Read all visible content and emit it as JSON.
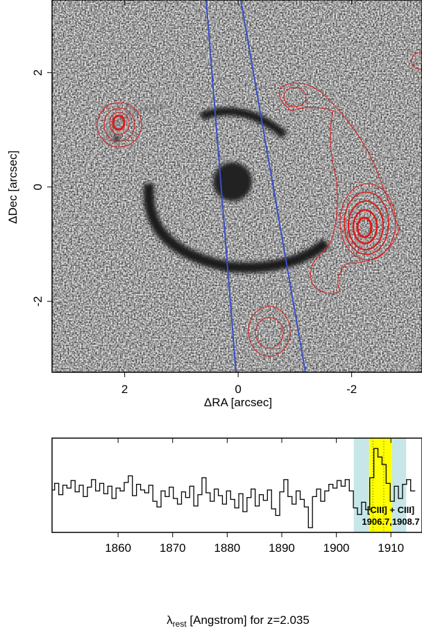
{
  "chart_data": [
    {
      "type": "image",
      "xlabel": "ΔRA [arcsec]",
      "ylabel": "ΔDec [arcsec]",
      "xlim": [
        3.28,
        -3.24
      ],
      "ylim": [
        -3.24,
        3.27
      ],
      "xticks": [
        2,
        0,
        -2
      ],
      "yticks": [
        -2,
        0,
        2
      ]
    },
    {
      "type": "step",
      "xlabel": [
        "λ",
        "rest",
        " [Angstrom] for z=2.035"
      ],
      "xlim": [
        1847.9,
        1915.7
      ],
      "ylim": [
        0,
        1
      ],
      "xticks": [
        1860,
        1870,
        1880,
        1890,
        1900,
        1910
      ],
      "bin_width": 0.75,
      "color": "#000000",
      "x": [
        1848.0,
        1848.75,
        1849.5,
        1850.25,
        1851.0,
        1851.75,
        1852.5,
        1853.25,
        1854.0,
        1854.75,
        1855.5,
        1856.25,
        1857.0,
        1857.75,
        1858.5,
        1859.25,
        1860.0,
        1860.75,
        1861.5,
        1862.25,
        1863.0,
        1863.75,
        1864.5,
        1865.25,
        1866.0,
        1866.75,
        1867.5,
        1868.25,
        1869.0,
        1869.75,
        1870.5,
        1871.25,
        1872.0,
        1872.75,
        1873.5,
        1874.25,
        1875.0,
        1875.75,
        1876.5,
        1877.25,
        1878.0,
        1878.75,
        1879.5,
        1880.25,
        1881.0,
        1881.75,
        1882.5,
        1883.25,
        1884.0,
        1884.75,
        1885.5,
        1886.25,
        1887.0,
        1887.75,
        1888.5,
        1889.25,
        1890.0,
        1890.75,
        1891.5,
        1892.25,
        1893.0,
        1893.75,
        1894.5,
        1895.25,
        1896.0,
        1896.75,
        1897.5,
        1898.25,
        1899.0,
        1899.75,
        1900.5,
        1901.25,
        1902.0,
        1902.75,
        1903.5,
        1904.25,
        1905.0,
        1905.75,
        1906.5,
        1907.25,
        1908.0,
        1908.75,
        1909.5,
        1910.25,
        1911.0,
        1911.75,
        1912.5,
        1913.25,
        1914.0
      ],
      "values": [
        0.45,
        0.52,
        0.4,
        0.5,
        0.47,
        0.55,
        0.43,
        0.5,
        0.38,
        0.48,
        0.56,
        0.44,
        0.52,
        0.41,
        0.49,
        0.36,
        0.47,
        0.44,
        0.53,
        0.6,
        0.39,
        0.51,
        0.45,
        0.42,
        0.5,
        0.33,
        0.27,
        0.44,
        0.38,
        0.48,
        0.36,
        0.3,
        0.43,
        0.37,
        0.49,
        0.28,
        0.4,
        0.58,
        0.42,
        0.33,
        0.46,
        0.39,
        0.3,
        0.44,
        0.35,
        0.26,
        0.41,
        0.22,
        0.37,
        0.46,
        0.28,
        0.4,
        0.34,
        0.45,
        0.25,
        0.18,
        0.43,
        0.56,
        0.38,
        0.3,
        0.44,
        0.35,
        0.27,
        0.05,
        0.38,
        0.46,
        0.33,
        0.44,
        0.51,
        0.47,
        0.55,
        0.49,
        0.56,
        0.44,
        0.26,
        0.19,
        0.32,
        0.24,
        0.58,
        0.89,
        0.8,
        0.72,
        0.52,
        0.33,
        0.49,
        0.36,
        0.51,
        0.56,
        0.44
      ],
      "shaded_regions": [
        {
          "xlim": [
            1903.2,
            1906.0
          ],
          "color": "#c6e6e8"
        },
        {
          "xlim": [
            1910.2,
            1912.8
          ],
          "color": "#c6e6e8"
        },
        {
          "xlim": [
            1906.0,
            1910.2
          ],
          "color": "#ffff00"
        }
      ],
      "line_centers": [
        1906.7,
        1908.7
      ],
      "annotations": [
        "[CIII] + CIII]",
        "1906.7,1908.7"
      ]
    }
  ]
}
